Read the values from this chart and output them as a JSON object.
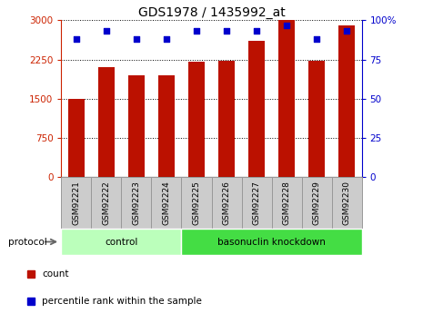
{
  "title": "GDS1978 / 1435992_at",
  "samples": [
    "GSM92221",
    "GSM92222",
    "GSM92223",
    "GSM92224",
    "GSM92225",
    "GSM92226",
    "GSM92227",
    "GSM92228",
    "GSM92229",
    "GSM92230"
  ],
  "counts": [
    1500,
    2100,
    1950,
    1950,
    2200,
    2230,
    2600,
    3000,
    2220,
    2900
  ],
  "percentile_ranks": [
    88,
    93,
    88,
    88,
    93,
    93,
    93,
    97,
    88,
    93
  ],
  "bar_color": "#bb1100",
  "dot_color": "#0000cc",
  "left_ylim": [
    0,
    3000
  ],
  "left_yticks": [
    0,
    750,
    1500,
    2250,
    3000
  ],
  "right_ylim": [
    0,
    100
  ],
  "right_yticks": [
    0,
    25,
    50,
    75,
    100
  ],
  "right_yticklabels": [
    "0",
    "25",
    "50",
    "75",
    "100%"
  ],
  "groups": [
    {
      "label": "control",
      "start": 0,
      "end": 4,
      "color": "#bbffbb"
    },
    {
      "label": "basonuclin knockdown",
      "start": 4,
      "end": 10,
      "color": "#44dd44"
    }
  ],
  "protocol_label": "protocol",
  "legend_items": [
    {
      "label": "count",
      "color": "#bb1100"
    },
    {
      "label": "percentile rank within the sample",
      "color": "#0000cc"
    }
  ],
  "tick_area_color": "#cccccc",
  "grid_color": "#000000",
  "left_tick_color": "#cc2200",
  "right_tick_color": "#0000cc",
  "cell_border_color": "#999999"
}
